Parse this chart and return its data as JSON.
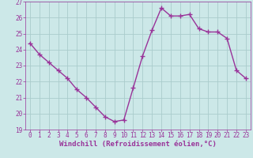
{
  "hours": [
    0,
    1,
    2,
    3,
    4,
    5,
    6,
    7,
    8,
    9,
    10,
    11,
    12,
    13,
    14,
    15,
    16,
    17,
    18,
    19,
    20,
    21,
    22,
    23
  ],
  "values": [
    24.4,
    23.7,
    23.2,
    22.7,
    22.2,
    21.5,
    21.0,
    20.4,
    19.8,
    19.5,
    19.6,
    21.6,
    23.6,
    25.2,
    26.6,
    26.1,
    26.1,
    26.2,
    25.3,
    25.1,
    25.1,
    24.7,
    22.7,
    22.2
  ],
  "line_color": "#993399",
  "marker": "+",
  "marker_size": 4,
  "bg_color": "#cce8e8",
  "grid_color": "#aacccc",
  "xlabel": "Windchill (Refroidissement éolien,°C)",
  "xlabel_color": "#993399",
  "ylim": [
    19,
    27
  ],
  "yticks": [
    19,
    20,
    21,
    22,
    23,
    24,
    25,
    26,
    27
  ],
  "xlim": [
    -0.5,
    23.5
  ],
  "xticks": [
    0,
    1,
    2,
    3,
    4,
    5,
    6,
    7,
    8,
    9,
    10,
    11,
    12,
    13,
    14,
    15,
    16,
    17,
    18,
    19,
    20,
    21,
    22,
    23
  ],
  "tick_label_color": "#993399",
  "tick_label_fontsize": 5.5,
  "xlabel_fontsize": 6.5,
  "line_width": 1.0
}
